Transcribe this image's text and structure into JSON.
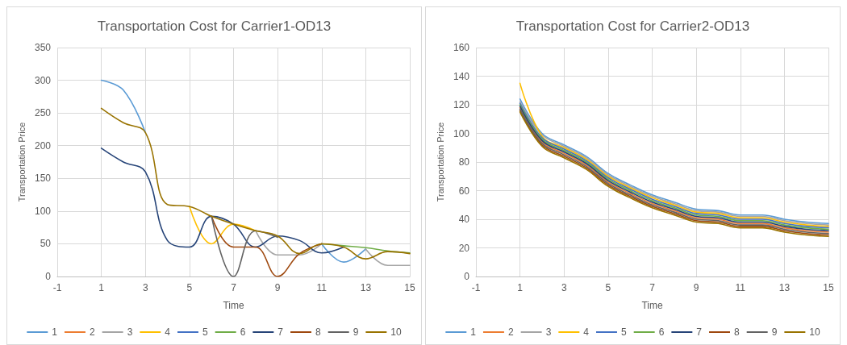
{
  "chart_data": [
    {
      "type": "line",
      "title": "Transportation Cost for Carrier1-OD13",
      "xlabel": "Time",
      "ylabel": "Transportation Price",
      "x": [
        1,
        2,
        3,
        4,
        5,
        6,
        7,
        8,
        9,
        10,
        11,
        12,
        13,
        14,
        15
      ],
      "xlim": [
        -1,
        15
      ],
      "xticks": [
        -1,
        1,
        3,
        5,
        7,
        9,
        11,
        13,
        15
      ],
      "ylim": [
        0,
        350
      ],
      "yticks": [
        0,
        50,
        100,
        150,
        200,
        250,
        300,
        350
      ],
      "grid": true,
      "legend": "bottom",
      "series": [
        {
          "name": "1",
          "color": "#5b9bd5",
          "values": [
            300,
            285,
            220,
            null,
            null,
            null,
            null,
            null,
            null,
            null,
            50,
            22,
            42,
            null,
            null
          ]
        },
        {
          "name": "2",
          "color": "#ed7d31",
          "values": [
            null,
            null,
            null,
            null,
            null,
            null,
            null,
            null,
            null,
            null,
            null,
            null,
            null,
            null,
            null
          ]
        },
        {
          "name": "3",
          "color": "#a5a5a5",
          "values": [
            null,
            null,
            null,
            null,
            null,
            null,
            null,
            70,
            33,
            33,
            50,
            null,
            42,
            17,
            17
          ]
        },
        {
          "name": "4",
          "color": "#ffc000",
          "values": [
            null,
            null,
            null,
            null,
            107,
            50,
            80,
            70,
            null,
            null,
            null,
            null,
            null,
            null,
            null
          ]
        },
        {
          "name": "5",
          "color": "#4472c4",
          "values": [
            null,
            null,
            null,
            null,
            null,
            null,
            null,
            null,
            null,
            null,
            null,
            null,
            null,
            null,
            null
          ]
        },
        {
          "name": "6",
          "color": "#70ad47",
          "values": [
            null,
            null,
            null,
            null,
            null,
            null,
            null,
            null,
            null,
            null,
            50,
            47,
            44,
            39,
            36
          ]
        },
        {
          "name": "7",
          "color": "#264478",
          "values": [
            196,
            175,
            160,
            55,
            45,
            92,
            80,
            45,
            62,
            55,
            36,
            45,
            null,
            null,
            null
          ]
        },
        {
          "name": "8",
          "color": "#9e480e",
          "values": [
            null,
            null,
            null,
            null,
            null,
            92,
            45,
            45,
            0,
            35,
            50,
            null,
            null,
            null,
            null
          ]
        },
        {
          "name": "9",
          "color": "#636363",
          "values": [
            null,
            null,
            null,
            null,
            null,
            92,
            0,
            70,
            60,
            null,
            null,
            null,
            null,
            null,
            null
          ]
        },
        {
          "name": "10",
          "color": "#997300",
          "values": [
            257,
            235,
            220,
            110,
            107,
            92,
            80,
            70,
            62,
            35,
            50,
            45,
            27,
            38,
            35
          ]
        }
      ]
    },
    {
      "type": "line",
      "title": "Transportation Cost for Carrier2-OD13",
      "xlabel": "Time",
      "ylabel": "Transportation Price",
      "x": [
        1,
        2,
        3,
        4,
        5,
        6,
        7,
        8,
        9,
        10,
        11,
        12,
        13,
        14,
        15
      ],
      "xlim": [
        -1,
        15
      ],
      "xticks": [
        -1,
        1,
        3,
        5,
        7,
        9,
        11,
        13,
        15
      ],
      "ylim": [
        0,
        160
      ],
      "yticks": [
        0,
        20,
        40,
        60,
        80,
        100,
        120,
        140,
        160
      ],
      "grid": true,
      "legend": "bottom",
      "series": [
        {
          "name": "1",
          "color": "#5b9bd5",
          "values": [
            124,
            100,
            92,
            84,
            72,
            64,
            57,
            52,
            47,
            46,
            43,
            43,
            40,
            38,
            37
          ]
        },
        {
          "name": "2",
          "color": "#ed7d31",
          "values": [
            118,
            94,
            86,
            78,
            66,
            58,
            51,
            46,
            41,
            40,
            37,
            37,
            34,
            32,
            31
          ]
        },
        {
          "name": "3",
          "color": "#a5a5a5",
          "values": [
            122,
            99,
            91,
            83,
            71,
            63,
            56,
            51,
            46,
            45,
            42,
            42,
            39,
            37,
            36
          ]
        },
        {
          "name": "4",
          "color": "#ffc000",
          "values": [
            135,
            98,
            90,
            82,
            70,
            62,
            55,
            50,
            45,
            44,
            41,
            41,
            38,
            36,
            35
          ]
        },
        {
          "name": "5",
          "color": "#4472c4",
          "values": [
            121,
            97,
            89,
            81,
            69,
            61,
            54,
            49,
            44,
            43,
            40,
            40,
            37,
            35,
            34
          ]
        },
        {
          "name": "6",
          "color": "#70ad47",
          "values": [
            120,
            96,
            88,
            80,
            68,
            60,
            53,
            48,
            43,
            42,
            39,
            39,
            36,
            34,
            33
          ]
        },
        {
          "name": "7",
          "color": "#264478",
          "values": [
            119,
            95,
            87,
            79,
            67,
            59,
            52,
            47,
            42,
            41,
            38,
            38,
            35,
            33,
            32
          ]
        },
        {
          "name": "8",
          "color": "#9e480e",
          "values": [
            116,
            92,
            84,
            76,
            64,
            56,
            49,
            44,
            39,
            38,
            35,
            35,
            32,
            30,
            29
          ]
        },
        {
          "name": "9",
          "color": "#636363",
          "values": [
            117,
            93,
            85,
            77,
            65,
            57,
            50,
            45,
            40,
            39,
            36,
            36,
            33,
            31,
            30
          ]
        },
        {
          "name": "10",
          "color": "#997300",
          "values": [
            115,
            91,
            83,
            75,
            63,
            55,
            48,
            43,
            38,
            37,
            34,
            34,
            31,
            29,
            28
          ]
        }
      ]
    }
  ]
}
